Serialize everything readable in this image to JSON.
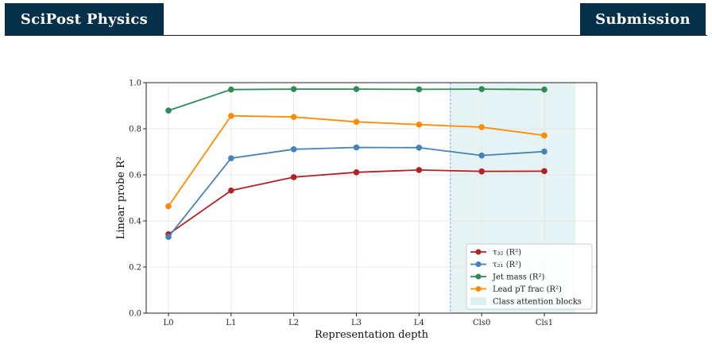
{
  "header": {
    "journal_name": "SciPost Physics",
    "section_label": "Submission"
  },
  "colors": {
    "header_bg": "#06304a",
    "series_tau32": "#b22222",
    "series_tau21": "#4682b4",
    "series_jetmass": "#2e8b57",
    "series_leadpt": "#ff8c00",
    "shade": "#dff0f1",
    "divider": "#7ca8e0"
  },
  "chart_data": {
    "type": "line",
    "categories": [
      "L0",
      "L1",
      "L2",
      "L3",
      "L4",
      "Cls0",
      "Cls1"
    ],
    "series": [
      {
        "name": "τ₃₂ (R²)",
        "color": "#b22222",
        "values": [
          0.342,
          0.532,
          0.59,
          0.611,
          0.621,
          0.615,
          0.616
        ]
      },
      {
        "name": "τ₂₁ (R²)",
        "color": "#4682b4",
        "values": [
          0.331,
          0.672,
          0.711,
          0.719,
          0.718,
          0.684,
          0.701
        ]
      },
      {
        "name": "Jet mass (R²)",
        "color": "#2e8b57",
        "values": [
          0.879,
          0.97,
          0.972,
          0.972,
          0.971,
          0.972,
          0.97
        ]
      },
      {
        "name": "Lead pT frac (R²)",
        "color": "#ff8c00",
        "values": [
          0.464,
          0.856,
          0.851,
          0.83,
          0.818,
          0.807,
          0.771
        ]
      }
    ],
    "shaded_region": {
      "label": "Class attention blocks",
      "from": 4.5,
      "to": 6.5
    },
    "title": "",
    "xlabel": "Representation depth",
    "ylabel": "Linear probe R²",
    "ylim": [
      0.0,
      1.0
    ],
    "yticks": [
      "0.0",
      "0.2",
      "0.4",
      "0.6",
      "0.8",
      "1.0"
    ],
    "grid": true,
    "legend_position": "lower-right"
  }
}
